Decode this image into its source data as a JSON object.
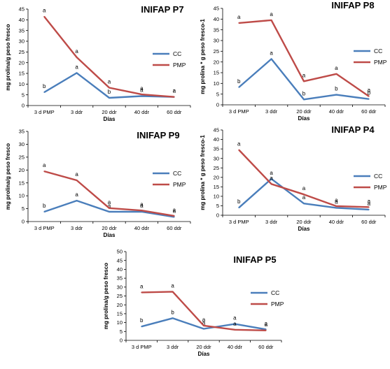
{
  "colors": {
    "cc": "#4a7ebb",
    "pmp": "#be4b48",
    "axis": "#000000"
  },
  "chart_data": [
    {
      "type": "line",
      "title": "INIFAP P7",
      "xlabel": "Días",
      "ylabel": "mg prolina/g peso fresco",
      "ylim": [
        0,
        45
      ],
      "yticks": [
        "0",
        "5",
        "10",
        "15",
        "20",
        "25",
        "30",
        "35",
        "40",
        "45"
      ],
      "categories": [
        "3 d PMP",
        "3 ddr",
        "20 ddr",
        "40 ddr",
        "60 ddr"
      ],
      "legend_position": "right",
      "series": [
        {
          "name": "CC",
          "values": [
            6.2,
            15.2,
            3.6,
            4.4,
            4.0
          ],
          "labels": [
            "b",
            "a",
            "b",
            "a",
            "a"
          ]
        },
        {
          "name": "PMP",
          "values": [
            41.5,
            22.5,
            8.3,
            5.2,
            4.0
          ],
          "labels": [
            "a",
            "a",
            "a",
            "a",
            "a"
          ]
        }
      ]
    },
    {
      "type": "line",
      "title": "INIFAP P8",
      "xlabel": "Días",
      "ylabel": "mg prolina * g peso fresco-1",
      "ylim": [
        0,
        45
      ],
      "yticks": [
        "0",
        "5",
        "10",
        "15",
        "20",
        "25",
        "30",
        "35",
        "40",
        "45"
      ],
      "categories": [
        "3 d PMP",
        "3 ddr",
        "20 ddr",
        "40 ddr",
        "60 ddr"
      ],
      "legend_position": "right",
      "series": [
        {
          "name": "CC",
          "values": [
            8.2,
            21.4,
            2.5,
            4.7,
            2.7
          ],
          "labels": [
            "b",
            "a",
            "b",
            "b",
            "b"
          ]
        },
        {
          "name": "PMP",
          "values": [
            38.2,
            39.5,
            11.0,
            14.4,
            4.0
          ],
          "labels": [
            "a",
            "a",
            "a",
            "a",
            "a"
          ]
        }
      ]
    },
    {
      "type": "line",
      "title": "INIFAP P9",
      "xlabel": "Días",
      "ylabel": "mg prolina/g peso fresco",
      "ylim": [
        0,
        35
      ],
      "yticks": [
        "0",
        "5",
        "10",
        "15",
        "20",
        "25",
        "30",
        "35"
      ],
      "categories": [
        "3 d PMP",
        "3 ddr",
        "20 ddr",
        "40 ddr",
        "60 ddr"
      ],
      "legend_position": "right",
      "series": [
        {
          "name": "CC",
          "values": [
            3.8,
            8.1,
            3.8,
            3.8,
            1.8
          ],
          "labels": [
            "b",
            "a",
            "a",
            "a",
            "a"
          ]
        },
        {
          "name": "PMP",
          "values": [
            19.5,
            16.0,
            5.2,
            4.3,
            2.2
          ],
          "labels": [
            "a",
            "a",
            "a",
            "a",
            "a"
          ]
        }
      ]
    },
    {
      "type": "line",
      "title": "INIFAP P4",
      "xlabel": "Días",
      "ylabel": "mg prolina * g peso fresco-1",
      "ylim": [
        0,
        45
      ],
      "yticks": [
        "0",
        "5",
        "10",
        "15",
        "20",
        "25",
        "30",
        "35",
        "40",
        "45"
      ],
      "categories": [
        "3 d PMP",
        "3 ddr",
        "20 ddr",
        "40 ddr",
        "60 ddr"
      ],
      "legend_position": "right",
      "series": [
        {
          "name": "CC",
          "values": [
            4.0,
            19.2,
            6.2,
            3.9,
            3.0
          ],
          "labels": [
            "b",
            "a",
            "a",
            "a",
            "a"
          ]
        },
        {
          "name": "PMP",
          "values": [
            34.5,
            16.5,
            11.0,
            4.8,
            4.3
          ],
          "labels": [
            "a",
            "a",
            "a",
            "a",
            "a"
          ]
        }
      ]
    },
    {
      "type": "line",
      "title": "INIFAP P5",
      "xlabel": "Días",
      "ylabel": "mg prolina/g peso fresco",
      "ylim": [
        0,
        50
      ],
      "yticks": [
        "0",
        "5",
        "10",
        "15",
        "20",
        "25",
        "30",
        "35",
        "40",
        "45",
        "50"
      ],
      "categories": [
        "3 d PMP",
        "3 ddr",
        "20 ddr",
        "40 ddr",
        "60 ddr"
      ],
      "legend_position": "right",
      "series": [
        {
          "name": "CC",
          "values": [
            7.8,
            12.5,
            6.5,
            9.2,
            6.2
          ],
          "labels": [
            "b",
            "b",
            "a",
            "a",
            "a"
          ]
        },
        {
          "name": "PMP",
          "values": [
            27.0,
            27.4,
            8.3,
            6.0,
            5.6
          ],
          "labels": [
            "a",
            "a",
            "a",
            "a",
            "a"
          ]
        }
      ]
    }
  ]
}
